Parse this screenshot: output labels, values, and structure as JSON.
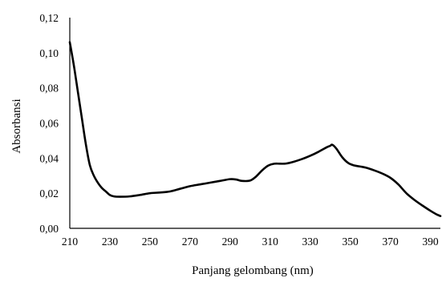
{
  "chart_data": {
    "type": "line",
    "title": "",
    "xlabel": "Panjang gelombang (nm)",
    "ylabel": "Absorbansi",
    "xlim": [
      210,
      395
    ],
    "ylim": [
      0,
      0.12
    ],
    "x_ticks": [
      "210",
      "230",
      "250",
      "270",
      "290",
      "310",
      "330",
      "350",
      "370",
      "390"
    ],
    "y_ticks": [
      "0,00",
      "0,02",
      "0,04",
      "0,06",
      "0,08",
      "0,10",
      "0,12"
    ],
    "grid": false,
    "legend": "none",
    "series": [
      {
        "color": "#000000",
        "x": [
          210,
          212,
          214,
          216,
          218,
          220,
          222,
          224,
          226,
          228,
          230,
          232,
          235,
          240,
          245,
          250,
          255,
          260,
          265,
          270,
          275,
          280,
          285,
          290,
          293,
          296,
          300,
          303,
          306,
          309,
          312,
          315,
          318,
          322,
          326,
          330,
          334,
          338,
          340,
          341,
          343,
          346,
          349,
          352,
          355,
          358,
          362,
          366,
          370,
          374,
          378,
          382,
          386,
          390,
          393,
          395
        ],
        "y": [
          0.106,
          0.093,
          0.078,
          0.063,
          0.048,
          0.036,
          0.03,
          0.026,
          0.023,
          0.021,
          0.019,
          0.0182,
          0.018,
          0.0182,
          0.019,
          0.02,
          0.0204,
          0.021,
          0.0225,
          0.024,
          0.025,
          0.026,
          0.027,
          0.028,
          0.0278,
          0.027,
          0.0272,
          0.0295,
          0.033,
          0.0357,
          0.0368,
          0.0368,
          0.0369,
          0.038,
          0.0395,
          0.0413,
          0.0435,
          0.046,
          0.047,
          0.0476,
          0.0455,
          0.0405,
          0.0372,
          0.0358,
          0.0352,
          0.0345,
          0.033,
          0.0312,
          0.0288,
          0.025,
          0.02,
          0.0162,
          0.013,
          0.01,
          0.008,
          0.007
        ]
      }
    ]
  }
}
